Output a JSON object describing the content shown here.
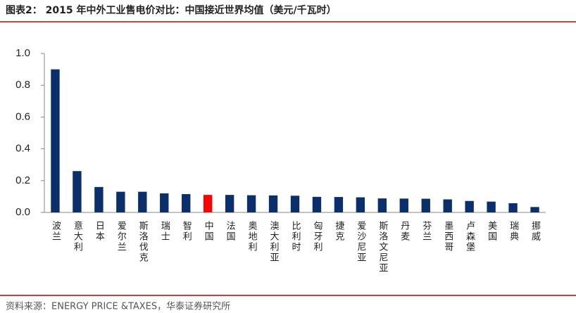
{
  "title": "图表2： 2015 年中外工业售电价对比：中国接近世界均值（美元/千瓦时）",
  "source": "资料来源：ENERGY PRICE &TAXES，华泰证券研究所",
  "chart_data": {
    "type": "bar",
    "categories": [
      "波兰",
      "意大利",
      "日本",
      "爱尔兰",
      "斯洛伐克",
      "瑞士",
      "智利",
      "中国",
      "法国",
      "奥地利",
      "澳大利亚",
      "比利时",
      "匈牙利",
      "捷克",
      "爱沙尼亚",
      "斯洛文尼亚",
      "丹麦",
      "芬兰",
      "墨西哥",
      "卢森堡",
      "美国",
      "瑞典",
      "挪威"
    ],
    "values": [
      0.9,
      0.26,
      0.16,
      0.13,
      0.13,
      0.12,
      0.115,
      0.11,
      0.11,
      0.108,
      0.107,
      0.105,
      0.098,
      0.097,
      0.095,
      0.088,
      0.087,
      0.086,
      0.082,
      0.072,
      0.068,
      0.058,
      0.034
    ],
    "colors": [
      "#0b2f6b",
      "#0b2f6b",
      "#0b2f6b",
      "#0b2f6b",
      "#0b2f6b",
      "#0b2f6b",
      "#0b2f6b",
      "#ff0000",
      "#0b2f6b",
      "#0b2f6b",
      "#0b2f6b",
      "#0b2f6b",
      "#0b2f6b",
      "#0b2f6b",
      "#0b2f6b",
      "#0b2f6b",
      "#0b2f6b",
      "#0b2f6b",
      "#0b2f6b",
      "#0b2f6b",
      "#0b2f6b",
      "#0b2f6b",
      "#0b2f6b"
    ],
    "ylim": [
      0,
      1.0
    ],
    "yticks": [
      {
        "value": 0,
        "label": "0.0"
      },
      0.2,
      0.4,
      0.6,
      0.8,
      {
        "value": 1.0,
        "label": "1.0"
      }
    ]
  }
}
